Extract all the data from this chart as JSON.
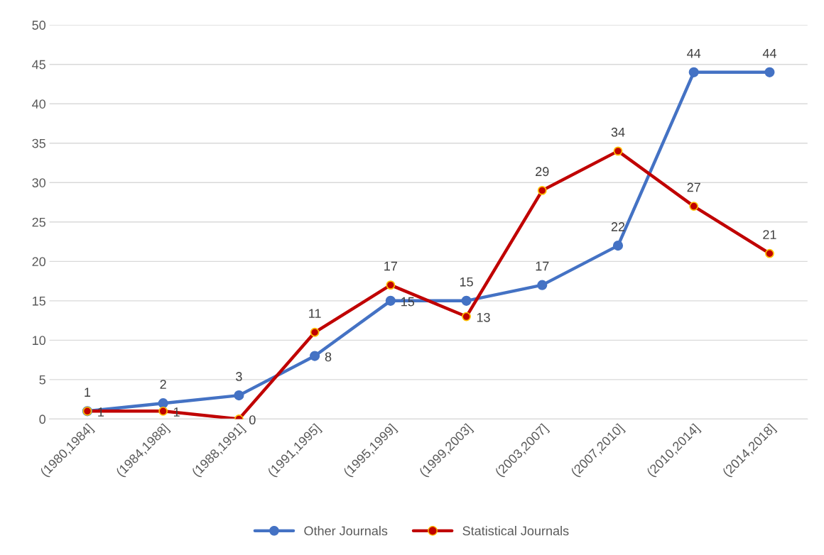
{
  "chart_data": {
    "type": "line",
    "categories": [
      "(1980,1984]",
      "(1984,1988]",
      "(1988,1991]",
      "(1991,1995]",
      "(1995,1999]",
      "(1999,2003]",
      "(2003,2007]",
      "(2007,2010]",
      "(2010,2014]",
      "(2014,2018]"
    ],
    "series": [
      {
        "name": "Other Journals",
        "color": "#4472c4",
        "values": [
          1,
          2,
          3,
          8,
          15,
          15,
          17,
          22,
          44,
          44
        ]
      },
      {
        "name": "Statistical Journals",
        "color": "#c00000",
        "values": [
          1,
          1,
          0,
          11,
          17,
          13,
          29,
          34,
          27,
          21
        ]
      }
    ],
    "ylim": [
      0,
      50
    ],
    "yticks": [
      0,
      5,
      10,
      15,
      20,
      25,
      30,
      35,
      40,
      45,
      50
    ],
    "grid": "y",
    "legend": "bottom",
    "marker": "circle",
    "line_style": "solid",
    "data_labels": true
  }
}
